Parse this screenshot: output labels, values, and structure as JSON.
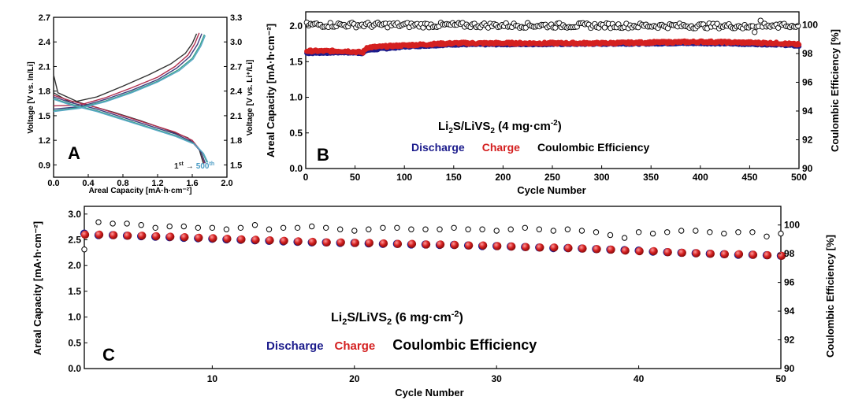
{
  "chart_data": [
    {
      "panel": "A",
      "type": "line",
      "xlabel": "Areal Capacity [mA·h·cm⁻²]",
      "ylabel_left": "Voltage [V vs. In/Li]",
      "ylabel_right": "Voltage [V vs. Li⁺/Li]",
      "xlim": [
        0,
        2.0
      ],
      "ylim_left": [
        0.75,
        2.7
      ],
      "ylim_right": [
        1.35,
        3.3
      ],
      "xticks": [
        "0.0",
        "0.4",
        "0.8",
        "1.2",
        "1.6",
        "2.0"
      ],
      "yticks_left": [
        "0.9",
        "1.2",
        "1.5",
        "1.8",
        "2.1",
        "2.4",
        "2.7"
      ],
      "yticks_right": [
        "1.5",
        "1.8",
        "2.1",
        "2.4",
        "2.7",
        "3.0",
        "3.3"
      ],
      "annotation": {
        "start": "1",
        "start_sup": "st",
        "arrow": "→",
        "end": "500",
        "end_sup": "th"
      },
      "series": [
        {
          "color": "#333333",
          "charge": [
            [
              0.0,
              1.78
            ],
            [
              0.2,
              1.66
            ],
            [
              0.5,
              1.73
            ],
            [
              0.8,
              1.86
            ],
            [
              1.1,
              2.0
            ],
            [
              1.35,
              2.13
            ],
            [
              1.52,
              2.26
            ],
            [
              1.6,
              2.38
            ],
            [
              1.65,
              2.5
            ]
          ],
          "discharge": [
            [
              0.0,
              2.0
            ],
            [
              0.05,
              1.78
            ],
            [
              0.3,
              1.66
            ],
            [
              0.7,
              1.54
            ],
            [
              1.0,
              1.44
            ],
            [
              1.3,
              1.33
            ],
            [
              1.55,
              1.23
            ],
            [
              1.68,
              1.09
            ],
            [
              1.73,
              0.91
            ]
          ]
        },
        {
          "color": "#b03050",
          "charge": [
            [
              0.0,
              1.62
            ],
            [
              0.3,
              1.63
            ],
            [
              0.6,
              1.72
            ],
            [
              0.9,
              1.84
            ],
            [
              1.2,
              1.97
            ],
            [
              1.4,
              2.1
            ],
            [
              1.55,
              2.24
            ],
            [
              1.63,
              2.38
            ],
            [
              1.68,
              2.51
            ]
          ],
          "discharge": [
            [
              0.0,
              1.75
            ],
            [
              0.2,
              1.68
            ],
            [
              0.5,
              1.6
            ],
            [
              0.8,
              1.5
            ],
            [
              1.1,
              1.4
            ],
            [
              1.4,
              1.3
            ],
            [
              1.6,
              1.2
            ],
            [
              1.7,
              1.07
            ],
            [
              1.74,
              0.92
            ]
          ]
        },
        {
          "color": "#404080",
          "charge": [
            [
              0.0,
              1.58
            ],
            [
              0.3,
              1.61
            ],
            [
              0.6,
              1.7
            ],
            [
              0.9,
              1.81
            ],
            [
              1.2,
              1.94
            ],
            [
              1.42,
              2.08
            ],
            [
              1.57,
              2.22
            ],
            [
              1.66,
              2.37
            ],
            [
              1.71,
              2.5
            ]
          ],
          "discharge": [
            [
              0.0,
              1.73
            ],
            [
              0.2,
              1.66
            ],
            [
              0.5,
              1.58
            ],
            [
              0.8,
              1.48
            ],
            [
              1.1,
              1.38
            ],
            [
              1.4,
              1.28
            ],
            [
              1.6,
              1.18
            ],
            [
              1.7,
              1.06
            ],
            [
              1.75,
              0.92
            ]
          ]
        },
        {
          "color": "#3aa08a",
          "charge": [
            [
              0.0,
              1.56
            ],
            [
              0.3,
              1.6
            ],
            [
              0.6,
              1.68
            ],
            [
              0.9,
              1.79
            ],
            [
              1.2,
              1.92
            ],
            [
              1.44,
              2.06
            ],
            [
              1.6,
              2.2
            ],
            [
              1.69,
              2.36
            ],
            [
              1.74,
              2.49
            ]
          ],
          "discharge": [
            [
              0.0,
              1.71
            ],
            [
              0.2,
              1.64
            ],
            [
              0.5,
              1.56
            ],
            [
              0.8,
              1.46
            ],
            [
              1.1,
              1.36
            ],
            [
              1.4,
              1.26
            ],
            [
              1.62,
              1.16
            ],
            [
              1.72,
              1.05
            ],
            [
              1.77,
              0.93
            ]
          ]
        },
        {
          "color": "#5aa8c8",
          "charge": [
            [
              0.0,
              1.55
            ],
            [
              0.3,
              1.59
            ],
            [
              0.6,
              1.67
            ],
            [
              0.9,
              1.78
            ],
            [
              1.2,
              1.91
            ],
            [
              1.45,
              2.05
            ],
            [
              1.61,
              2.19
            ],
            [
              1.7,
              2.35
            ],
            [
              1.75,
              2.48
            ]
          ],
          "discharge": [
            [
              0.0,
              1.7
            ],
            [
              0.2,
              1.63
            ],
            [
              0.5,
              1.55
            ],
            [
              0.8,
              1.45
            ],
            [
              1.1,
              1.35
            ],
            [
              1.4,
              1.25
            ],
            [
              1.63,
              1.15
            ],
            [
              1.73,
              1.04
            ],
            [
              1.78,
              0.93
            ]
          ]
        }
      ]
    },
    {
      "panel": "B",
      "type": "scatter",
      "xlabel": "Cycle Number",
      "ylabel_left": "Areal Capacity [mA·h·cm⁻²]",
      "ylabel_right": "Coulombic Efficiency [%]",
      "xlim": [
        0,
        500
      ],
      "ylim_left": [
        0,
        2.2
      ],
      "ylim_right": [
        90,
        100.9
      ],
      "xticks": [
        "0",
        "50",
        "100",
        "150",
        "200",
        "250",
        "300",
        "350",
        "400",
        "450",
        "500"
      ],
      "yticks_left": [
        "0.0",
        "0.5",
        "1.0",
        "1.5",
        "2.0"
      ],
      "yticks_right": [
        "90",
        "92",
        "94",
        "96",
        "98",
        "100"
      ],
      "label_main": "Li",
      "label_sub1": "2",
      "label_mid": "S/LiVS",
      "label_sub2": "2",
      "label_load": " (4 mg·cm",
      "label_exp": "-2",
      "label_end": ")",
      "legend": [
        {
          "name": "Discharge",
          "color": "#1c1c8c"
        },
        {
          "name": "Charge",
          "color": "#d42020"
        },
        {
          "name": "Coulombic Efficiency",
          "color": "#000000"
        }
      ],
      "series": [
        {
          "name": "Discharge",
          "color": "#1c1c8c",
          "trend": [
            [
              1,
              1.62
            ],
            [
              40,
              1.63
            ],
            [
              58,
              1.62
            ],
            [
              62,
              1.66
            ],
            [
              100,
              1.71
            ],
            [
              150,
              1.74
            ],
            [
              300,
              1.75
            ],
            [
              400,
              1.76
            ],
            [
              480,
              1.74
            ],
            [
              500,
              1.72
            ]
          ]
        },
        {
          "name": "Charge",
          "color": "#d42020",
          "trend": [
            [
              1,
              1.65
            ],
            [
              40,
              1.65
            ],
            [
              58,
              1.63
            ],
            [
              62,
              1.7
            ],
            [
              100,
              1.73
            ],
            [
              150,
              1.76
            ],
            [
              300,
              1.76
            ],
            [
              400,
              1.78
            ],
            [
              480,
              1.76
            ],
            [
              500,
              1.74
            ]
          ]
        },
        {
          "name": "Coulombic Efficiency",
          "color": "#000000",
          "trend": [
            [
              1,
              100.0
            ],
            [
              500,
              99.9
            ]
          ]
        }
      ]
    },
    {
      "panel": "C",
      "type": "scatter",
      "xlabel": "Cycle Number",
      "ylabel_left": "Areal Capacity [mA·h·cm⁻²]",
      "ylabel_right": "Coulombic Efficiency [%]",
      "xlim": [
        1,
        50
      ],
      "ylim_left": [
        0,
        3.15
      ],
      "ylim_right": [
        90,
        101.3
      ],
      "xticks": [
        "10",
        "20",
        "30",
        "40",
        "50"
      ],
      "yticks_left": [
        "0.0",
        "0.5",
        "1.0",
        "1.5",
        "2.0",
        "2.5",
        "3.0"
      ],
      "yticks_right": [
        "90",
        "92",
        "94",
        "96",
        "98",
        "100"
      ],
      "label_main": "Li",
      "label_sub1": "2",
      "label_mid": "S/LiVS",
      "label_sub2": "2",
      "label_load": " (6 mg·cm",
      "label_exp": "-2",
      "label_end": ")",
      "legend": [
        {
          "name": "Discharge",
          "color": "#1c1c8c"
        },
        {
          "name": "Charge",
          "color": "#d42020"
        },
        {
          "name": "Coulombic Efficiency",
          "color": "#000000"
        }
      ],
      "series": [
        {
          "name": "Discharge",
          "color": "#1c1c8c",
          "x": [
            1,
            2,
            3,
            4,
            5,
            6,
            7,
            8,
            9,
            10,
            11,
            12,
            13,
            14,
            15,
            16,
            17,
            18,
            19,
            20,
            21,
            22,
            23,
            24,
            25,
            26,
            27,
            28,
            29,
            30,
            31,
            32,
            33,
            34,
            35,
            36,
            37,
            38,
            39,
            40,
            41,
            42,
            43,
            44,
            45,
            46,
            47,
            48,
            49,
            50
          ],
          "values": [
            2.62,
            2.59,
            2.59,
            2.58,
            2.57,
            2.56,
            2.55,
            2.54,
            2.53,
            2.52,
            2.51,
            2.5,
            2.49,
            2.48,
            2.47,
            2.46,
            2.45,
            2.45,
            2.44,
            2.44,
            2.43,
            2.42,
            2.42,
            2.41,
            2.41,
            2.4,
            2.4,
            2.39,
            2.38,
            2.38,
            2.37,
            2.36,
            2.35,
            2.34,
            2.34,
            2.33,
            2.32,
            2.31,
            2.3,
            2.29,
            2.27,
            2.26,
            2.25,
            2.24,
            2.23,
            2.22,
            2.21,
            2.21,
            2.2,
            2.19
          ]
        },
        {
          "name": "Charge",
          "color": "#d42020",
          "x": [
            1,
            2,
            3,
            4,
            5,
            6,
            7,
            8,
            9,
            10,
            11,
            12,
            13,
            14,
            15,
            16,
            17,
            18,
            19,
            20,
            21,
            22,
            23,
            24,
            25,
            26,
            27,
            28,
            29,
            30,
            31,
            32,
            33,
            34,
            35,
            36,
            37,
            38,
            39,
            40,
            41,
            42,
            43,
            44,
            45,
            46,
            47,
            48,
            49,
            50
          ],
          "values": [
            2.6,
            2.6,
            2.59,
            2.58,
            2.58,
            2.57,
            2.56,
            2.55,
            2.54,
            2.53,
            2.52,
            2.51,
            2.5,
            2.49,
            2.48,
            2.47,
            2.46,
            2.45,
            2.45,
            2.44,
            2.44,
            2.43,
            2.42,
            2.42,
            2.41,
            2.41,
            2.4,
            2.39,
            2.39,
            2.38,
            2.37,
            2.36,
            2.35,
            2.35,
            2.34,
            2.33,
            2.32,
            2.31,
            2.29,
            2.28,
            2.28,
            2.26,
            2.25,
            2.24,
            2.23,
            2.22,
            2.22,
            2.21,
            2.2,
            2.19
          ]
        },
        {
          "name": "Coulombic Efficiency",
          "color": "#000000",
          "x": [
            1,
            2,
            3,
            4,
            5,
            6,
            7,
            8,
            9,
            10,
            11,
            12,
            13,
            14,
            15,
            16,
            17,
            18,
            19,
            20,
            21,
            22,
            23,
            24,
            25,
            26,
            27,
            28,
            29,
            30,
            31,
            32,
            33,
            34,
            35,
            36,
            37,
            38,
            39,
            40,
            41,
            42,
            43,
            44,
            45,
            46,
            47,
            48,
            49,
            50
          ],
          "values": [
            98.3,
            100.2,
            100.1,
            100.1,
            100.0,
            99.8,
            99.9,
            99.9,
            99.8,
            99.8,
            99.7,
            99.8,
            100.0,
            99.7,
            99.8,
            99.8,
            99.9,
            99.8,
            99.7,
            99.6,
            99.7,
            99.8,
            99.8,
            99.7,
            99.7,
            99.7,
            99.8,
            99.7,
            99.7,
            99.6,
            99.7,
            99.8,
            99.7,
            99.6,
            99.7,
            99.6,
            99.5,
            99.3,
            99.1,
            99.5,
            99.4,
            99.5,
            99.6,
            99.6,
            99.5,
            99.4,
            99.5,
            99.5,
            99.2,
            99.4
          ]
        }
      ]
    }
  ]
}
